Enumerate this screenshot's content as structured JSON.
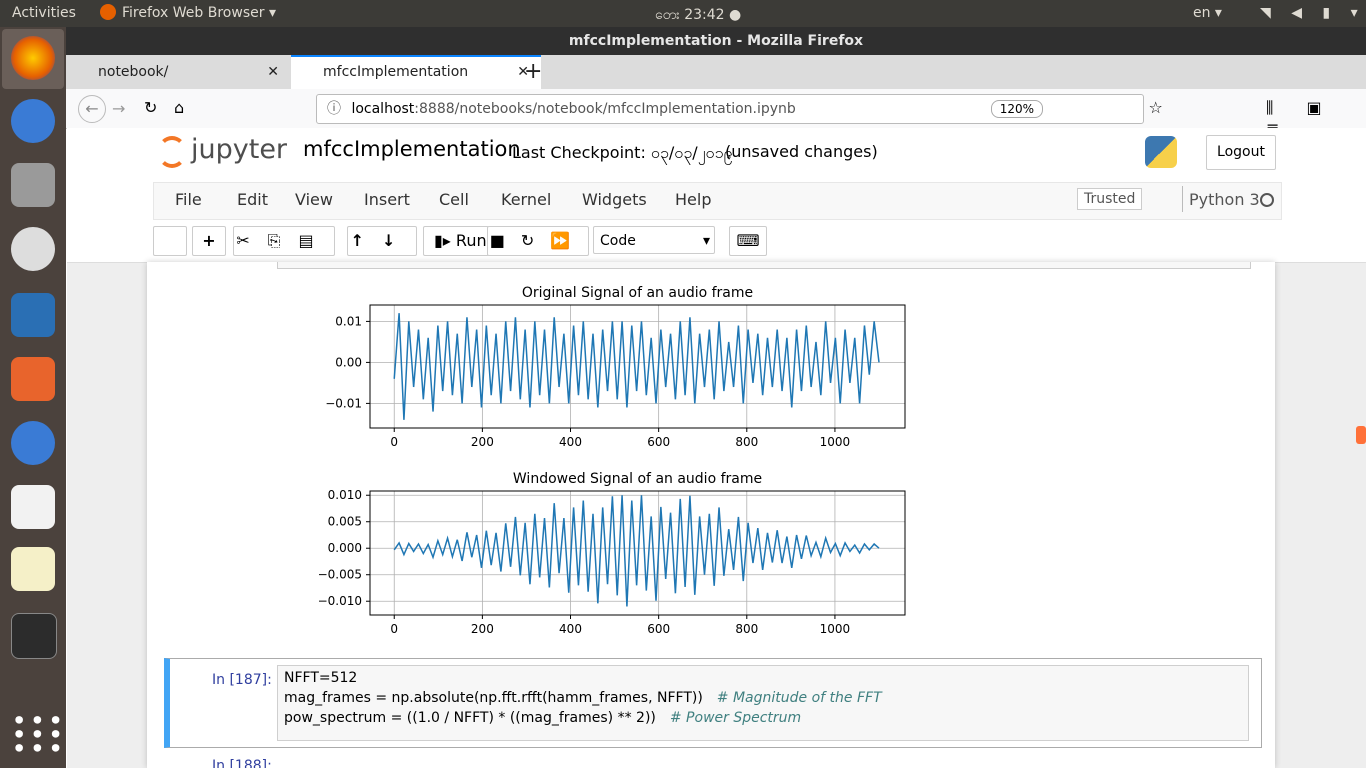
{
  "topbar": {
    "activities": "Activities",
    "app": "Firefox Web Browser ▾",
    "clock": "တေး 23:42 ●",
    "lang": "en ▾"
  },
  "window_title": "mfccImplementation - Mozilla Firefox",
  "tabs": [
    "notebook/",
    "mfccImplementation"
  ],
  "url": {
    "host": "localhost",
    "rest": ":8888/notebooks/notebook/mfccImplementation.ipynb",
    "zoom": "120%"
  },
  "jupyter": {
    "logo": "jupyter",
    "notebook_name": "mfccImplementation",
    "checkpoint": "Last Checkpoint: ၀၃/၀၃/၂၀၁၉",
    "status": "(unsaved changes)",
    "logout": "Logout",
    "menu": [
      "File",
      "Edit",
      "View",
      "Insert",
      "Cell",
      "Kernel",
      "Widgets",
      "Help"
    ],
    "trusted": "Trusted",
    "kernel": "Python 3",
    "run": "Run",
    "cell_type": "Code"
  },
  "chart_data": [
    {
      "type": "line",
      "title": "Original Signal of an audio frame",
      "x": [
        0,
        11,
        22,
        33,
        44,
        55,
        66,
        77,
        88,
        99,
        110,
        121,
        132,
        143,
        154,
        165,
        176,
        187,
        198,
        209,
        220,
        231,
        242,
        253,
        264,
        275,
        286,
        297,
        308,
        319,
        330,
        341,
        352,
        363,
        374,
        385,
        396,
        407,
        418,
        429,
        440,
        451,
        462,
        473,
        484,
        495,
        506,
        517,
        528,
        539,
        550,
        561,
        572,
        583,
        594,
        605,
        616,
        627,
        638,
        649,
        660,
        671,
        682,
        693,
        704,
        715,
        726,
        737,
        748,
        759,
        770,
        781,
        792,
        803,
        814,
        825,
        836,
        847,
        858,
        869,
        880,
        891,
        902,
        913,
        924,
        935,
        946,
        957,
        968,
        979,
        990,
        1001,
        1012,
        1023,
        1034,
        1045,
        1056,
        1067,
        1078,
        1089,
        1100
      ],
      "series": [
        {
          "color": "#1f77b4",
          "values": [
            -0.004,
            0.012,
            -0.014,
            0.01,
            -0.006,
            0.008,
            -0.009,
            0.006,
            -0.012,
            0.009,
            -0.007,
            0.01,
            -0.008,
            0.007,
            -0.01,
            0.011,
            -0.006,
            0.008,
            -0.011,
            0.009,
            -0.008,
            0.007,
            -0.01,
            0.01,
            -0.007,
            0.011,
            -0.009,
            0.008,
            -0.011,
            0.01,
            -0.008,
            0.008,
            -0.01,
            0.011,
            -0.006,
            0.007,
            -0.01,
            0.009,
            -0.008,
            0.01,
            -0.009,
            0.007,
            -0.011,
            0.008,
            -0.007,
            0.01,
            -0.009,
            0.01,
            -0.011,
            0.009,
            -0.007,
            0.01,
            -0.008,
            0.006,
            -0.01,
            0.008,
            -0.006,
            0.007,
            -0.009,
            0.01,
            -0.008,
            0.011,
            -0.01,
            0.007,
            -0.006,
            0.008,
            -0.009,
            0.01,
            -0.007,
            0.005,
            -0.006,
            0.009,
            -0.01,
            0.008,
            -0.005,
            0.007,
            -0.008,
            0.006,
            -0.006,
            0.008,
            -0.007,
            0.006,
            -0.011,
            0.008,
            -0.007,
            0.009,
            -0.006,
            0.005,
            -0.008,
            0.01,
            -0.005,
            0.006,
            -0.01,
            0.008,
            -0.005,
            0.006,
            -0.01,
            0.009,
            -0.003,
            0.01,
            0.0
          ]
        }
      ],
      "xlim": [
        -55,
        1159
      ],
      "ylim": [
        -0.016,
        0.014
      ],
      "xticks": [
        0,
        200,
        400,
        600,
        800,
        1000
      ],
      "yticks": [
        0.01,
        {
          "value": 0,
          "label": "0.00"
        },
        {
          "value": -0.01,
          "label": "−0.01"
        }
      ],
      "grid": true
    },
    {
      "type": "line",
      "title": "Windowed Signal of an audio frame",
      "x": [
        0,
        11,
        22,
        33,
        44,
        55,
        66,
        77,
        88,
        99,
        110,
        121,
        132,
        143,
        154,
        165,
        176,
        187,
        198,
        209,
        220,
        231,
        242,
        253,
        264,
        275,
        286,
        297,
        308,
        319,
        330,
        341,
        352,
        363,
        374,
        385,
        396,
        407,
        418,
        429,
        440,
        451,
        462,
        473,
        484,
        495,
        506,
        517,
        528,
        539,
        550,
        561,
        572,
        583,
        594,
        605,
        616,
        627,
        638,
        649,
        660,
        671,
        682,
        693,
        704,
        715,
        726,
        737,
        748,
        759,
        770,
        781,
        792,
        803,
        814,
        825,
        836,
        847,
        858,
        869,
        880,
        891,
        902,
        913,
        924,
        935,
        946,
        957,
        968,
        979,
        990,
        1001,
        1012,
        1023,
        1034,
        1045,
        1056,
        1067,
        1078,
        1089,
        1100
      ],
      "series": [
        {
          "color": "#1f77b4",
          "values": [
            -0.0003,
            0.001,
            -0.0012,
            0.0009,
            -0.0006,
            0.0008,
            -0.001,
            0.0007,
            -0.0017,
            0.0014,
            -0.0012,
            0.0019,
            -0.0016,
            0.0016,
            -0.0024,
            0.003,
            -0.0017,
            0.0025,
            -0.0037,
            0.0033,
            -0.0032,
            0.0029,
            -0.0044,
            0.0047,
            -0.0035,
            0.0059,
            -0.0051,
            0.0048,
            -0.0068,
            0.0065,
            -0.0055,
            0.0057,
            -0.0074,
            0.0085,
            -0.0047,
            0.0057,
            -0.0084,
            0.0077,
            -0.007,
            0.009,
            -0.0082,
            0.0065,
            -0.0104,
            0.0077,
            -0.0068,
            0.0098,
            -0.0089,
            0.01,
            -0.011,
            0.009,
            -0.007,
            0.01,
            -0.008,
            0.006,
            -0.0099,
            0.0078,
            -0.0058,
            0.0067,
            -0.0085,
            0.0093,
            -0.0073,
            0.0099,
            -0.0088,
            0.006,
            -0.005,
            0.0065,
            -0.0071,
            0.0077,
            -0.0052,
            0.0036,
            -0.0041,
            0.0059,
            -0.0062,
            0.0048,
            -0.0028,
            0.0038,
            -0.0041,
            0.0029,
            -0.0027,
            0.0034,
            -0.0028,
            0.0022,
            -0.0037,
            0.0025,
            -0.002,
            0.0024,
            -0.0014,
            0.0011,
            -0.0016,
            0.0019,
            -0.0008,
            0.0009,
            -0.0014,
            0.001,
            -0.0006,
            0.0006,
            -0.0009,
            0.0008,
            -0.0003,
            0.0008,
            0.0
          ]
        }
      ],
      "xlim": [
        -55,
        1159
      ],
      "ylim": [
        -0.0126,
        0.0108
      ],
      "xticks": [
        0,
        200,
        400,
        600,
        800,
        1000
      ],
      "yticks": [
        {
          "value": 0.01,
          "label": "0.010"
        },
        0.005,
        {
          "value": 0,
          "label": "0.000"
        },
        {
          "value": -0.005,
          "label": "−0.005"
        },
        {
          "value": -0.01,
          "label": "−0.010"
        }
      ],
      "grid": true
    }
  ],
  "cell": {
    "prompt": "In [187]:",
    "lines": [
      {
        "code": "NFFT=512"
      },
      {
        "code": "mag_frames = np.absolute(np.fft.rfft(hamm_frames, NFFT))",
        "comment": "# Magnitude of the FFT"
      },
      {
        "code": "pow_spectrum = ((1.0 / NFFT) * ((mag_frames) ** 2))",
        "comment": "# Power Spectrum"
      }
    ]
  },
  "next_prompt": "In [188]:"
}
